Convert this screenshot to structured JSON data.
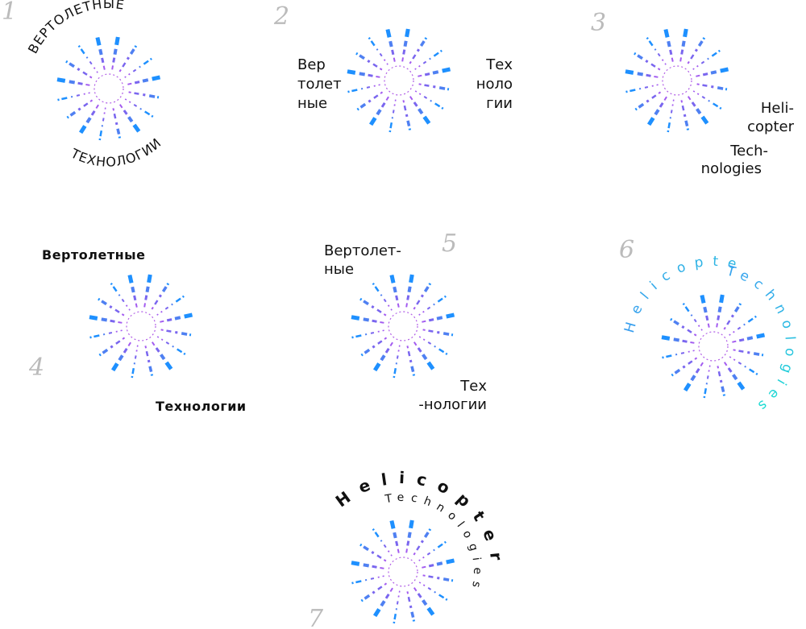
{
  "variants": [
    {
      "number": "1",
      "top": "ВЕРТОЛЕТНЫЕ",
      "bottom": "ТЕХНОЛОГИИ"
    },
    {
      "number": "2",
      "left": [
        "Вер",
        "толет",
        "ные"
      ],
      "right": [
        "Тех",
        "ноло",
        "гии"
      ]
    },
    {
      "number": "3",
      "lines": [
        "Heli-",
        "copter",
        "Tech-",
        "nologies"
      ]
    },
    {
      "number": "4",
      "top": "Вертолетные",
      "bottom": "Технологии"
    },
    {
      "number": "5",
      "top": [
        "Вертолет-",
        "ные"
      ],
      "bottom": [
        "Тех",
        "-нологии"
      ]
    },
    {
      "number": "6",
      "top": "Helicopter",
      "bottom": "Technologies"
    },
    {
      "number": "7",
      "top": "Helicopter",
      "bottom": "Technologies"
    }
  ]
}
